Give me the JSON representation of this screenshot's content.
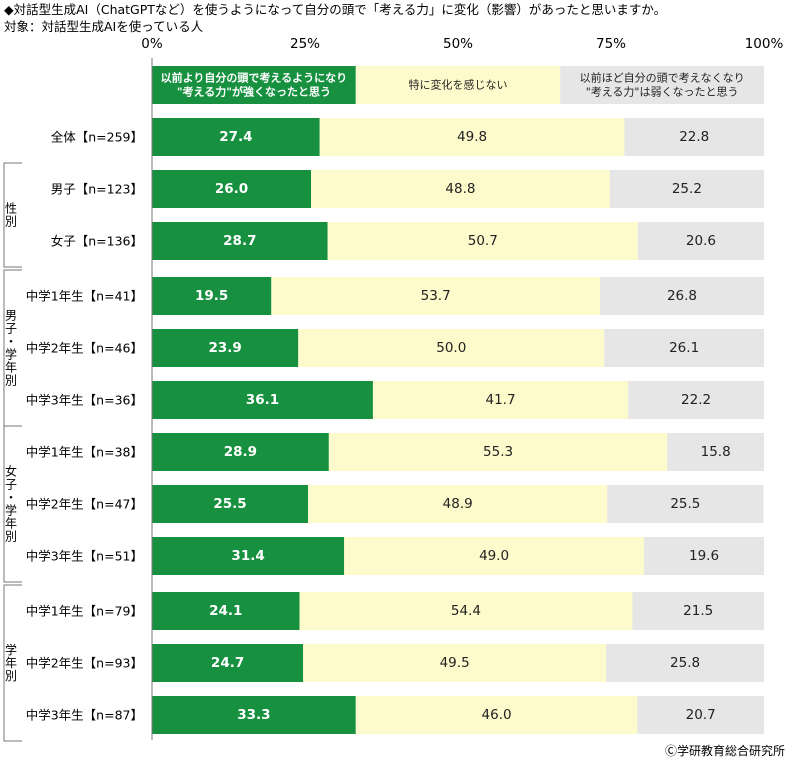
{
  "title": "◆対話型生成AI（ChatGPTなど）を使うようになって自分の頭で「考える力」に変化（影響）があったと思いますか。",
  "subtitle": "対象：対話型生成AIを使っている人",
  "copyright": "Ⓒ学研教育総合研究所",
  "colors": {
    "increase": "#179140",
    "nochange": "#fdfbcc",
    "decrease": "#e6e6e6",
    "line": "#777777"
  },
  "chart_data": {
    "type": "bar",
    "stacked": true,
    "orientation": "horizontal",
    "xlim": [
      0,
      100
    ],
    "ticks": [
      "0%",
      "25%",
      "50%",
      "75%",
      "100%"
    ],
    "legend": [
      {
        "lines": [
          "以前より自分の頭で考えるようになり",
          "\"考える力\"が強くなったと思う"
        ]
      },
      {
        "lines": [
          "特に変化を感じない"
        ]
      },
      {
        "lines": [
          "以前ほど自分の頭で考えなくなり",
          "\"考える力\"は弱くなったと思う"
        ]
      }
    ],
    "groups": [
      {
        "label": "",
        "rows": [
          {
            "label": "全体【n=259】",
            "values": [
              27.4,
              49.8,
              22.8
            ]
          }
        ]
      },
      {
        "label": "性別",
        "rows": [
          {
            "label": "男子【n=123】",
            "values": [
              26.0,
              48.8,
              25.2
            ]
          },
          {
            "label": "女子【n=136】",
            "values": [
              28.7,
              50.7,
              20.6
            ]
          }
        ]
      },
      {
        "label": "男子・学年別",
        "rows": [
          {
            "label": "中学1年生【n=41】",
            "values": [
              19.5,
              53.7,
              26.8
            ]
          },
          {
            "label": "中学2年生【n=46】",
            "values": [
              23.9,
              50.0,
              26.1
            ]
          },
          {
            "label": "中学3年生【n=36】",
            "values": [
              36.1,
              41.7,
              22.2
            ]
          }
        ]
      },
      {
        "label": "女子・学年別",
        "rows": [
          {
            "label": "中学1年生【n=38】",
            "values": [
              28.9,
              55.3,
              15.8
            ]
          },
          {
            "label": "中学2年生【n=47】",
            "values": [
              25.5,
              48.9,
              25.5
            ]
          },
          {
            "label": "中学3年生【n=51】",
            "values": [
              31.4,
              49.0,
              19.6
            ]
          }
        ]
      },
      {
        "label": "学年別",
        "rows": [
          {
            "label": "中学1年生【n=79】",
            "values": [
              24.1,
              54.4,
              21.5
            ]
          },
          {
            "label": "中学2年生【n=93】",
            "values": [
              24.7,
              49.5,
              25.8
            ]
          },
          {
            "label": "中学3年生【n=87】",
            "values": [
              33.3,
              46.0,
              20.7
            ]
          }
        ]
      }
    ]
  }
}
